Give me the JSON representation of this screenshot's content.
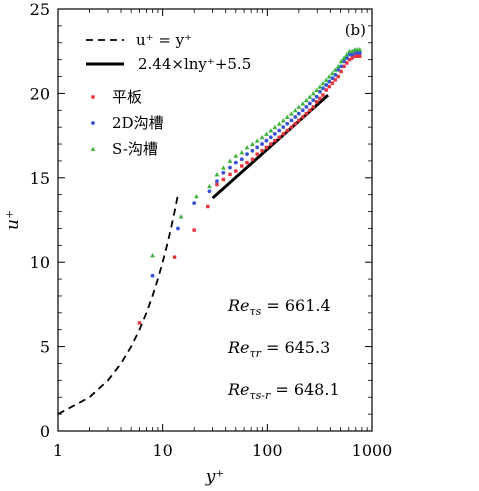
{
  "chart_data": {
    "type": "scatter",
    "panel_label": "(b)",
    "xlabel": "y⁺",
    "ylabel": "u⁺",
    "xscale": "log",
    "xlim": [
      1,
      1000
    ],
    "ylim": [
      0,
      25
    ],
    "x_ticks": [
      1,
      10,
      100,
      1000
    ],
    "x_tick_labels": [
      "1",
      "10",
      "100",
      "1000"
    ],
    "y_ticks": [
      0,
      5,
      10,
      15,
      20,
      25
    ],
    "y_tick_labels": [
      "0",
      "5",
      "10",
      "15",
      "20",
      "25"
    ],
    "grid": false,
    "legend_position": "top-left",
    "lines": [
      {
        "name": "u⁺ = y⁺",
        "style": "dashed",
        "color": "#000000",
        "x": [
          1,
          2,
          3,
          4,
          5,
          6,
          7,
          8,
          9,
          10,
          11,
          12,
          13,
          14
        ],
        "y": [
          1,
          2,
          3,
          4,
          5,
          6,
          7,
          8,
          9,
          10,
          11,
          12,
          13,
          14
        ]
      },
      {
        "name": "2.44×lny⁺+5.5",
        "style": "solid",
        "color": "#000000",
        "x": [
          30,
          380
        ],
        "y": [
          13.8,
          19.9
        ]
      }
    ],
    "series": [
      {
        "name": "平板",
        "marker": "square",
        "color": "#e8303a",
        "x": [
          6,
          13,
          20,
          27,
          33,
          38,
          44,
          50,
          57,
          64,
          72,
          80,
          89,
          98,
          108,
          118,
          130,
          142,
          155,
          170,
          185,
          200,
          218,
          236,
          255,
          275,
          296,
          318,
          340,
          365,
          390,
          418,
          446,
          476,
          507,
          540,
          574,
          610,
          647,
          686,
          725,
          765
        ],
        "y": [
          6.4,
          10.3,
          11.9,
          13.3,
          14.6,
          14.9,
          15.2,
          15.4,
          15.7,
          15.9,
          16.1,
          16.4,
          16.6,
          16.8,
          17.0,
          17.2,
          17.4,
          17.6,
          17.8,
          18.0,
          18.2,
          18.4,
          18.6,
          18.8,
          19.0,
          19.2,
          19.5,
          19.7,
          19.9,
          20.2,
          20.4,
          20.6,
          20.8,
          21.0,
          21.3,
          21.6,
          21.8,
          22.0,
          22.1,
          22.2,
          22.2,
          22.2
        ]
      },
      {
        "name": "2D沟槽",
        "marker": "circle",
        "color": "#3a52d8",
        "x": [
          8,
          14,
          20,
          28,
          33,
          38,
          44,
          50,
          57,
          64,
          72,
          80,
          89,
          98,
          108,
          118,
          130,
          142,
          155,
          170,
          185,
          200,
          218,
          236,
          255,
          275,
          296,
          318,
          340,
          365,
          390,
          418,
          446,
          476,
          507,
          540,
          574,
          610,
          647,
          686,
          725,
          765
        ],
        "y": [
          9.2,
          12.0,
          13.5,
          14.2,
          14.8,
          15.3,
          15.6,
          15.9,
          16.1,
          16.4,
          16.6,
          16.8,
          17.0,
          17.2,
          17.4,
          17.6,
          17.8,
          18.0,
          18.2,
          18.4,
          18.6,
          18.8,
          19.0,
          19.2,
          19.4,
          19.6,
          19.8,
          20.1,
          20.3,
          20.5,
          20.7,
          20.9,
          21.1,
          21.4,
          21.6,
          21.9,
          22.1,
          22.3,
          22.3,
          22.4,
          22.4,
          22.4
        ]
      },
      {
        "name": "S-沟槽",
        "marker": "triangle",
        "color": "#3db33d",
        "x": [
          8,
          15,
          21,
          28,
          33,
          38,
          44,
          50,
          57,
          64,
          72,
          80,
          89,
          98,
          108,
          118,
          130,
          142,
          155,
          170,
          185,
          200,
          218,
          236,
          255,
          275,
          296,
          318,
          340,
          365,
          390,
          418,
          446,
          476,
          507,
          540,
          574,
          610,
          647,
          686,
          725,
          765
        ],
        "y": [
          10.4,
          12.7,
          13.9,
          14.5,
          15.2,
          15.6,
          16.0,
          16.3,
          16.5,
          16.8,
          17.0,
          17.2,
          17.4,
          17.6,
          17.8,
          18.0,
          18.2,
          18.4,
          18.6,
          18.8,
          19.0,
          19.2,
          19.4,
          19.6,
          19.8,
          20.0,
          20.2,
          20.4,
          20.6,
          20.8,
          21.0,
          21.2,
          21.4,
          21.6,
          21.9,
          22.1,
          22.3,
          22.5,
          22.5,
          22.6,
          22.6,
          22.6
        ]
      }
    ],
    "annotations": [
      {
        "name": "re-tau-s",
        "label": "Re",
        "sub": "τs",
        "value": " = 661.4"
      },
      {
        "name": "re-tau-r",
        "label": "Re",
        "sub": "τr",
        "value": " = 645.3"
      },
      {
        "name": "re-tau-s-r",
        "label": "Re",
        "sub": "τs-r",
        "value": " = 648.1"
      }
    ]
  }
}
